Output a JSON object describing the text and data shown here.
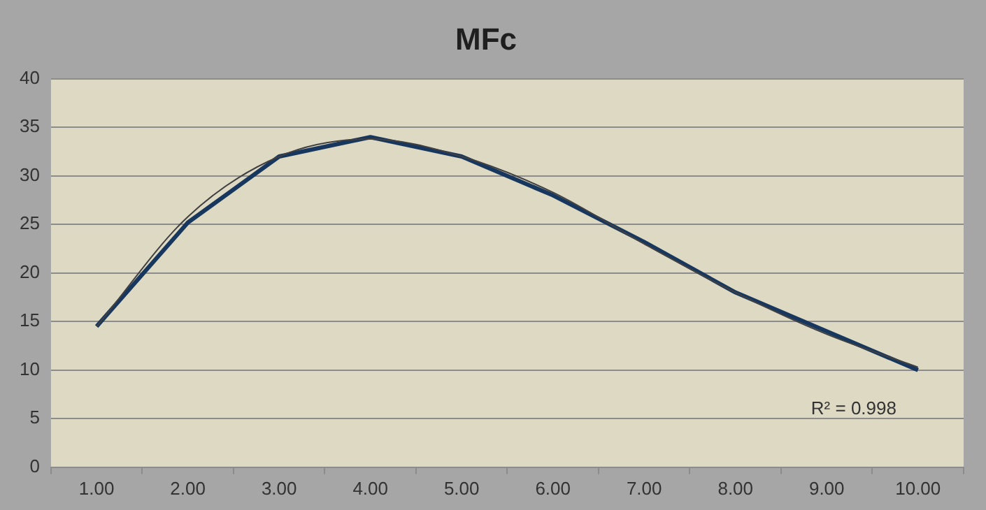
{
  "chart_data": {
    "type": "line",
    "title": "MFc",
    "categories": [
      "1.00",
      "2.00",
      "3.00",
      "4.00",
      "5.00",
      "6.00",
      "7.00",
      "8.00",
      "9.00",
      "10.00"
    ],
    "series": [
      {
        "color": "#17375e",
        "values": [
          14.5,
          25.2,
          32,
          34,
          32,
          28,
          23.2,
          18,
          14,
          10
        ]
      },
      {
        "color": "#404040",
        "values": [
          14.5,
          25.8,
          32,
          33.8,
          32,
          28.3,
          23,
          18,
          13.7,
          10.3
        ]
      }
    ],
    "ylim": [
      0,
      40
    ],
    "yticks": [
      0,
      5,
      10,
      15,
      20,
      25,
      30,
      35,
      40
    ],
    "grid": "y",
    "legend": false,
    "marker": "none",
    "annotations": [
      "R² = 0.998"
    ]
  }
}
